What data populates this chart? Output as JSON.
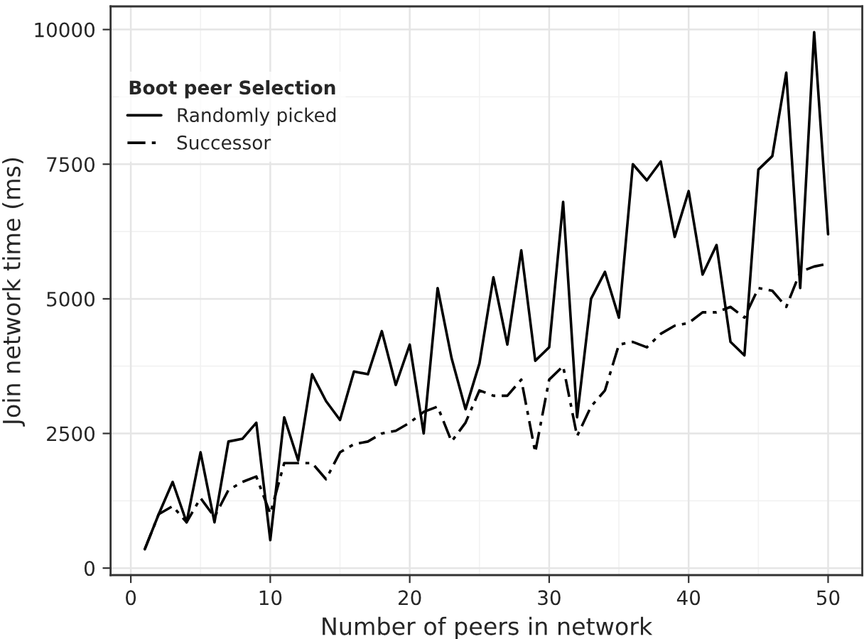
{
  "chart_data": {
    "type": "line",
    "xlabel": "Number of peers in network",
    "ylabel": "Join network time (ms)",
    "legend_title": "Boot peer Selection",
    "x": [
      1,
      2,
      3,
      4,
      5,
      6,
      7,
      8,
      9,
      10,
      11,
      12,
      13,
      14,
      15,
      16,
      17,
      18,
      19,
      20,
      21,
      22,
      23,
      24,
      25,
      26,
      27,
      28,
      29,
      30,
      31,
      32,
      33,
      34,
      35,
      36,
      37,
      38,
      39,
      40,
      41,
      42,
      43,
      44,
      45,
      46,
      47,
      48,
      49,
      50
    ],
    "series": [
      {
        "name": "Randomly picked",
        "color": "#000000",
        "line_style": "solid",
        "values": [
          350,
          1000,
          1600,
          850,
          2150,
          850,
          2350,
          2400,
          2700,
          520,
          2800,
          2000,
          3600,
          3100,
          2750,
          3650,
          3600,
          4400,
          3400,
          4150,
          2500,
          5200,
          3900,
          2950,
          3800,
          5400,
          4150,
          5900,
          3850,
          4100,
          6800,
          2800,
          5000,
          5500,
          4650,
          7500,
          7200,
          7550,
          6150,
          7000,
          5450,
          6000,
          4200,
          3950,
          7400,
          7650,
          9200,
          5200,
          9950,
          6200
        ]
      },
      {
        "name": "Successor",
        "color": "#000000",
        "line_style": "dashdot",
        "values": [
          350,
          1000,
          1150,
          850,
          1300,
          950,
          1450,
          1600,
          1700,
          1010,
          1950,
          1950,
          1950,
          1650,
          2150,
          2300,
          2350,
          2500,
          2550,
          2700,
          2900,
          3000,
          2350,
          2700,
          3300,
          3200,
          3200,
          3500,
          2150,
          3500,
          3750,
          2450,
          3000,
          3300,
          4150,
          4200,
          4100,
          4350,
          4500,
          4550,
          4750,
          4750,
          4850,
          4650,
          5200,
          5150,
          4850,
          5500,
          5600,
          5650
        ]
      }
    ],
    "xlim": [
      -1.45,
      52.45
    ],
    "xticks": [
      0,
      10,
      20,
      30,
      40,
      50
    ],
    "ylim": [
      -130,
      10430
    ],
    "yticks": [
      0,
      2500,
      5000,
      7500,
      10000
    ],
    "grid": true,
    "legend": "top left"
  }
}
